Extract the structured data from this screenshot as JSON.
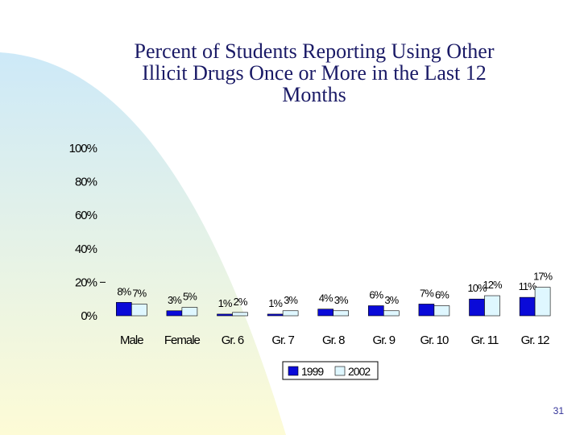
{
  "slide": {
    "title_lines": [
      "Percent of Students Reporting Using Other",
      "Illicit Drugs Once or More in the Last 12",
      "Months"
    ],
    "page_number": "31"
  },
  "colors": {
    "series_1999": "#0a0ad8",
    "series_2002": "#dff7ff",
    "title": "#1a1a66",
    "background_gradient": [
      "#cde9f8",
      "#fdfbd6"
    ]
  },
  "chart_data": {
    "type": "bar",
    "title": "Percent of Students Reporting Using Other Illicit Drugs Once or More in the Last 12 Months",
    "xlabel": "",
    "ylabel": "",
    "categories": [
      "Male",
      "Female",
      "Gr. 6",
      "Gr. 7",
      "Gr. 8",
      "Gr. 9",
      "Gr. 10",
      "Gr. 11",
      "Gr. 12"
    ],
    "series": [
      {
        "name": "1999",
        "values": [
          8,
          3,
          1,
          1,
          4,
          6,
          7,
          10,
          11
        ],
        "labels": [
          "8%",
          "3%",
          "1%",
          "1%",
          "4%",
          "6%",
          "7%",
          "10%",
          "11%"
        ]
      },
      {
        "name": "2002",
        "values": [
          7,
          5,
          2,
          3,
          3,
          3,
          6,
          12,
          17
        ],
        "labels": [
          "7%",
          "5%",
          "2%",
          "3%",
          "3%",
          "3%",
          "6%",
          "12%",
          "17%"
        ]
      }
    ],
    "ylim": [
      0,
      100
    ],
    "yticks": [
      0,
      20,
      40,
      60,
      80,
      100
    ],
    "ytick_labels": [
      "0%",
      "20%",
      "40%",
      "60%",
      "80%",
      "100%"
    ],
    "grid": false,
    "legend_position": "bottom"
  }
}
